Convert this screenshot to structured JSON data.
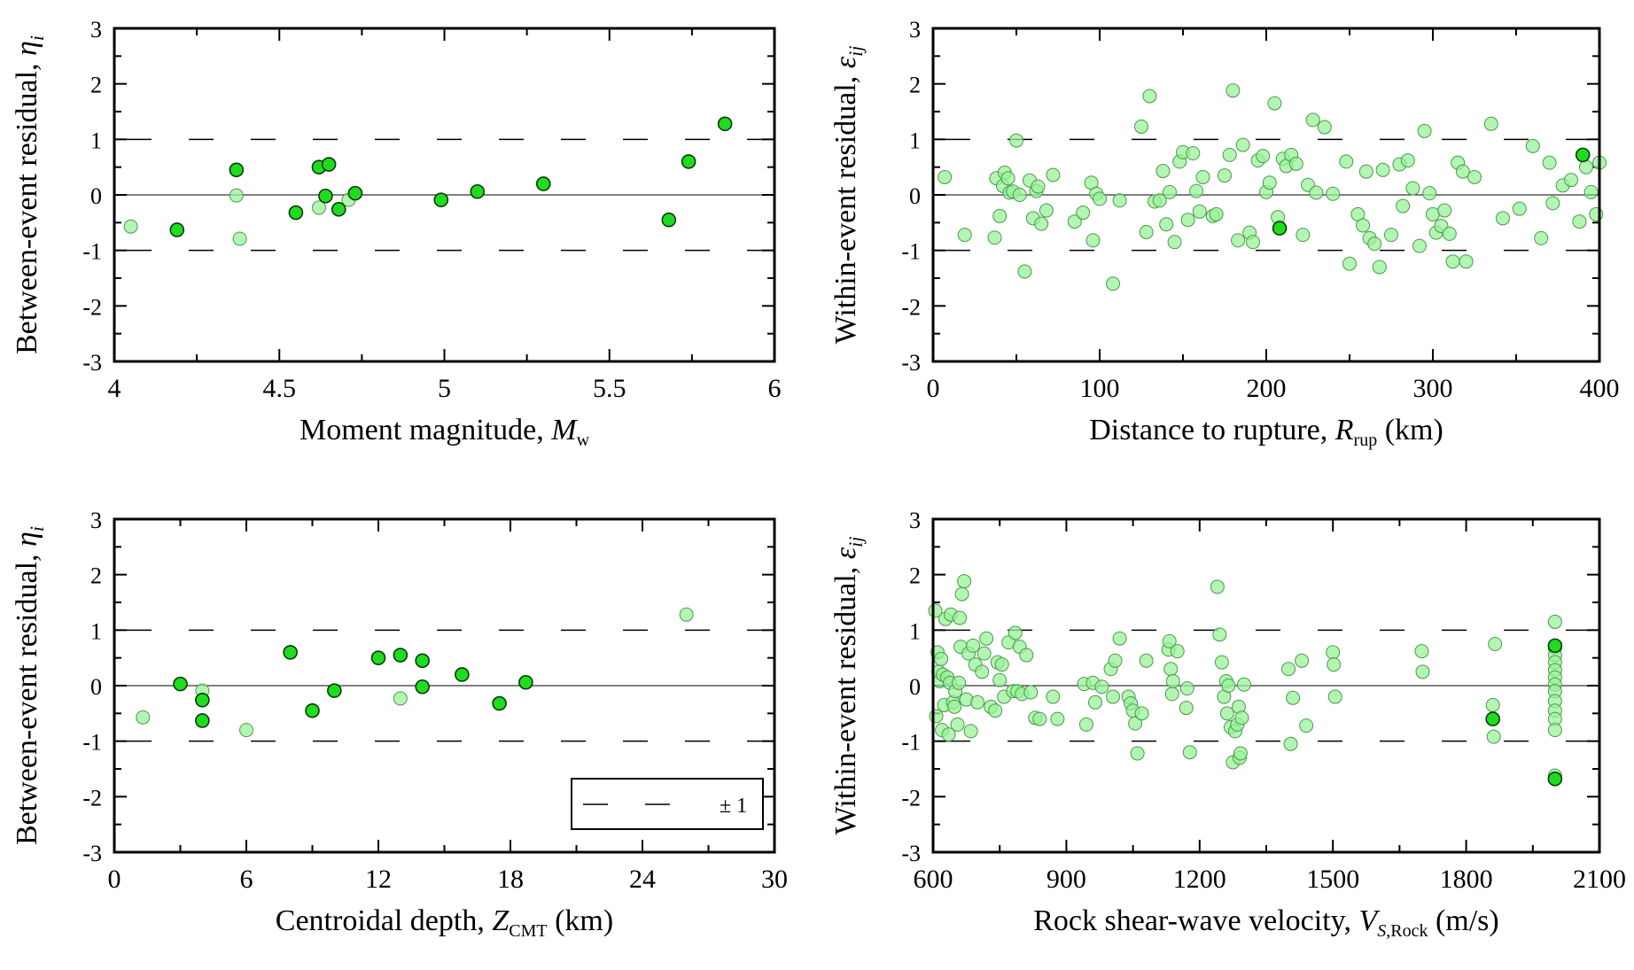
{
  "legend": {
    "label": "± 1"
  },
  "chart_data": [
    {
      "type": "scatter",
      "panel": "top-left",
      "ylabel": "Between-event residual, ",
      "ylabel_italic": "η",
      "ylabel_sub": "i",
      "xlabel": "Moment magnitude, ",
      "xlabel_italic": "M",
      "xlabel_sub": "w",
      "xlabel_suffix": "",
      "xlim": [
        4,
        6
      ],
      "ylim": [
        -3,
        3
      ],
      "xticks": [
        4,
        4.5,
        5,
        5.5,
        6
      ],
      "xtick_labels": [
        "4",
        "4.5",
        "5",
        "5.5",
        "6"
      ],
      "yticks": [
        -3,
        -2,
        -1,
        0,
        1,
        2,
        3
      ],
      "ytick_labels": [
        "-3",
        "-2",
        "-1",
        "0",
        "1",
        "2",
        "3"
      ],
      "reference_lines": [
        1,
        -1
      ],
      "zero_line": 0,
      "marker_colors": {
        "dark": "#1fdc1f",
        "light": "#9af29a"
      },
      "series": [
        {
          "name": "",
          "style": "dark",
          "x": [
            4.19,
            4.37,
            4.55,
            4.62,
            4.64,
            4.65,
            4.68,
            4.73,
            4.99,
            5.1,
            5.3,
            5.68,
            5.74,
            5.85
          ],
          "y": [
            -0.63,
            0.45,
            -0.32,
            0.5,
            -0.02,
            0.55,
            -0.26,
            0.03,
            -0.09,
            0.06,
            0.2,
            -0.45,
            0.6,
            1.28
          ]
        },
        {
          "name": "",
          "style": "light",
          "x": [
            4.05,
            4.37,
            4.38,
            4.62,
            4.71
          ],
          "y": [
            -0.57,
            -0.01,
            -0.79,
            -0.23,
            -0.09
          ]
        }
      ],
      "legend": false
    },
    {
      "type": "scatter",
      "panel": "top-right",
      "ylabel": "Within-event residual, ",
      "ylabel_italic": "ε",
      "ylabel_sub": "ij",
      "xlabel": "Distance to rupture, ",
      "xlabel_italic": "R",
      "xlabel_sub": "rup",
      "xlabel_suffix": " (km)",
      "xlim": [
        0,
        400
      ],
      "ylim": [
        -3,
        3
      ],
      "xticks": [
        0,
        100,
        200,
        300,
        400
      ],
      "xtick_labels": [
        "0",
        "100",
        "200",
        "300",
        "400"
      ],
      "yticks": [
        -3,
        -2,
        -1,
        0,
        1,
        2,
        3
      ],
      "ytick_labels": [
        "-3",
        "-2",
        "-1",
        "0",
        "1",
        "2",
        "3"
      ],
      "reference_lines": [
        1,
        -1
      ],
      "zero_line": 0,
      "marker_colors": {
        "dark": "#1fdc1f",
        "light": "#9af29a"
      },
      "series": [
        {
          "name": "",
          "style": "light",
          "x": [
            7,
            19,
            37,
            38,
            40,
            42,
            43,
            45,
            46,
            48,
            50,
            52,
            55,
            58,
            60,
            62,
            63,
            65,
            68,
            72,
            85,
            90,
            95,
            96,
            98,
            100,
            108,
            112,
            125,
            128,
            130,
            133,
            136,
            138,
            140,
            142,
            145,
            148,
            150,
            153,
            156,
            158,
            160,
            162,
            168,
            170,
            175,
            178,
            180,
            183,
            186,
            190,
            192,
            195,
            198,
            200,
            202,
            205,
            207,
            210,
            212,
            215,
            218,
            222,
            225,
            228,
            230,
            235,
            240,
            248,
            250,
            255,
            258,
            260,
            262,
            265,
            268,
            270,
            275,
            280,
            282,
            285,
            288,
            292,
            295,
            298,
            300,
            302,
            305,
            307,
            310,
            312,
            315,
            318,
            320,
            325,
            335,
            342,
            352,
            360,
            365,
            370,
            372,
            378,
            383,
            388,
            392,
            395,
            398,
            400
          ],
          "y": [
            0.32,
            -0.72,
            -0.77,
            0.3,
            -0.38,
            0.16,
            0.4,
            0.3,
            0.04,
            0.06,
            0.98,
            0.0,
            -1.38,
            0.26,
            -0.42,
            0.07,
            0.15,
            -0.52,
            -0.28,
            0.36,
            -0.48,
            -0.32,
            0.22,
            -0.82,
            0.02,
            -0.07,
            -1.6,
            -0.1,
            1.23,
            -0.67,
            1.78,
            -0.12,
            -0.1,
            0.43,
            -0.53,
            0.05,
            -0.85,
            0.6,
            0.77,
            -0.45,
            0.75,
            0.07,
            -0.3,
            0.32,
            -0.38,
            -0.35,
            0.35,
            0.72,
            1.88,
            -0.82,
            0.9,
            -0.68,
            -0.85,
            0.62,
            0.7,
            0.05,
            0.22,
            1.65,
            -0.4,
            0.65,
            0.52,
            0.72,
            0.56,
            -0.72,
            0.18,
            1.35,
            0.04,
            1.22,
            0.02,
            0.6,
            -1.24,
            -0.35,
            -0.55,
            0.42,
            -0.78,
            -0.88,
            -1.3,
            0.45,
            -0.72,
            0.55,
            -0.2,
            0.62,
            0.12,
            -0.92,
            1.15,
            0.03,
            -0.35,
            -0.68,
            -0.56,
            -0.28,
            -0.7,
            -1.2,
            0.58,
            0.42,
            -1.2,
            0.32,
            1.28,
            -0.42,
            -0.25,
            0.88,
            -0.78,
            0.58,
            -0.15,
            0.17,
            0.27,
            -0.48,
            0.5,
            0.05,
            -0.35,
            0.58
          ]
        },
        {
          "name": "",
          "style": "dark",
          "x": [
            208,
            390
          ],
          "y": [
            -0.6,
            0.72
          ]
        }
      ],
      "legend": false
    },
    {
      "type": "scatter",
      "panel": "bottom-left",
      "ylabel": "Between-event residual, ",
      "ylabel_italic": "η",
      "ylabel_sub": "i",
      "xlabel": "Centroidal depth, ",
      "xlabel_italic": "Z",
      "xlabel_sub": "CMT",
      "xlabel_suffix": " (km)",
      "xlim": [
        0,
        30
      ],
      "ylim": [
        -3,
        3
      ],
      "xticks": [
        0,
        6,
        12,
        18,
        24,
        30
      ],
      "xtick_labels": [
        "0",
        "6",
        "12",
        "18",
        "24",
        "30"
      ],
      "yticks": [
        -3,
        -2,
        -1,
        0,
        1,
        2,
        3
      ],
      "ytick_labels": [
        "-3",
        "-2",
        "-1",
        "0",
        "1",
        "2",
        "3"
      ],
      "reference_lines": [
        1,
        -1
      ],
      "zero_line": 0,
      "marker_colors": {
        "dark": "#1fdc1f",
        "light": "#9af29a"
      },
      "series": [
        {
          "name": "",
          "style": "dark",
          "x": [
            3,
            4,
            4,
            8,
            9,
            10,
            12,
            13,
            14,
            14,
            15.8,
            17.5,
            18.7
          ],
          "y": [
            0.03,
            -0.26,
            -0.63,
            0.6,
            -0.45,
            -0.09,
            0.5,
            0.55,
            0.45,
            -0.02,
            0.2,
            -0.32,
            0.06
          ]
        },
        {
          "name": "",
          "style": "light",
          "x": [
            1.3,
            4,
            6,
            13,
            26
          ],
          "y": [
            -0.57,
            -0.09,
            -0.8,
            -0.23,
            1.28
          ]
        }
      ],
      "legend": true,
      "legend_position": "bottom-right"
    },
    {
      "type": "scatter",
      "panel": "bottom-right",
      "ylabel": "Within-event residual, ",
      "ylabel_italic": "ε",
      "ylabel_sub": "ij",
      "xlabel": "Rock shear-wave velocity, ",
      "xlabel_italic": "V",
      "xlabel_sub": "S",
      "xlabel_sub2": ",Rock",
      "xlabel_suffix": " (m/s)",
      "xlim": [
        600,
        2100
      ],
      "ylim": [
        -3,
        3
      ],
      "xticks": [
        600,
        900,
        1200,
        1500,
        1800,
        2100
      ],
      "xtick_labels": [
        "600",
        "900",
        "1200",
        "1500",
        "1800",
        "2100"
      ],
      "yticks": [
        -3,
        -2,
        -1,
        0,
        1,
        2,
        3
      ],
      "ytick_labels": [
        "-3",
        "-2",
        "-1",
        "0",
        "1",
        "2",
        "3"
      ],
      "reference_lines": [
        1,
        -1
      ],
      "zero_line": 0,
      "marker_colors": {
        "dark": "#1fdc1f",
        "light": "#9af29a"
      },
      "series": [
        {
          "name": "",
          "style": "light",
          "x": [
            605,
            607,
            610,
            612,
            615,
            618,
            620,
            622,
            625,
            628,
            632,
            635,
            638,
            640,
            645,
            648,
            650,
            655,
            658,
            660,
            662,
            665,
            670,
            675,
            680,
            685,
            690,
            695,
            700,
            710,
            715,
            720,
            730,
            740,
            745,
            750,
            755,
            760,
            770,
            780,
            785,
            790,
            795,
            800,
            810,
            820,
            830,
            840,
            870,
            880,
            940,
            945,
            960,
            965,
            980,
            1000,
            1005,
            1010,
            1020,
            1040,
            1045,
            1050,
            1055,
            1060,
            1070,
            1080,
            1130,
            1132,
            1135,
            1138,
            1140,
            1150,
            1170,
            1172,
            1178,
            1240,
            1245,
            1250,
            1255,
            1260,
            1262,
            1265,
            1270,
            1275,
            1280,
            1285,
            1288,
            1290,
            1292,
            1295,
            1300,
            1400,
            1405,
            1410,
            1430,
            1440,
            1500,
            1502,
            1505,
            1700,
            1702,
            1860,
            1862,
            1865,
            2000,
            2000,
            2000,
            2000,
            2000,
            2000,
            2000,
            2000,
            2000,
            2000,
            2000,
            2000,
            2000
          ],
          "y": [
            1.35,
            -0.55,
            0.6,
            0.25,
            0.08,
            0.48,
            -0.8,
            0.2,
            -0.35,
            1.2,
            0.15,
            -0.88,
            0.05,
            1.28,
            -0.3,
            -0.38,
            -0.1,
            -0.7,
            0.05,
            1.22,
            0.7,
            1.65,
            1.88,
            -0.25,
            0.58,
            -0.82,
            0.72,
            0.38,
            -0.3,
            0.25,
            0.58,
            0.85,
            -0.38,
            -0.45,
            0.42,
            0.1,
            0.38,
            -0.2,
            0.78,
            -0.1,
            0.95,
            -0.1,
            0.7,
            -0.15,
            0.55,
            -0.12,
            -0.58,
            -0.6,
            -0.2,
            -0.6,
            0.03,
            -0.7,
            0.05,
            -0.3,
            -0.02,
            0.3,
            -0.2,
            0.45,
            0.85,
            -0.2,
            -0.32,
            -0.45,
            -0.68,
            -1.22,
            -0.5,
            0.45,
            0.65,
            0.8,
            0.3,
            -0.15,
            0.08,
            0.62,
            -0.4,
            -0.05,
            -1.2,
            1.78,
            0.92,
            0.42,
            -0.2,
            0.08,
            -0.5,
            0.0,
            -0.75,
            -1.38,
            -0.82,
            -0.7,
            -0.38,
            -1.3,
            -1.22,
            -0.58,
            0.02,
            0.3,
            -1.05,
            -0.22,
            0.45,
            -0.72,
            0.6,
            0.38,
            -0.2,
            0.62,
            0.25,
            -0.35,
            -0.92,
            0.75,
            1.15,
            0.68,
            0.55,
            0.42,
            0.28,
            0.15,
            0.02,
            -0.1,
            -0.28,
            -0.45,
            -0.6,
            -0.8,
            -1.62
          ]
        },
        {
          "name": "",
          "style": "dark",
          "x": [
            1860,
            2000,
            2000
          ],
          "y": [
            -0.6,
            0.72,
            -1.68
          ]
        }
      ],
      "legend": false
    }
  ]
}
